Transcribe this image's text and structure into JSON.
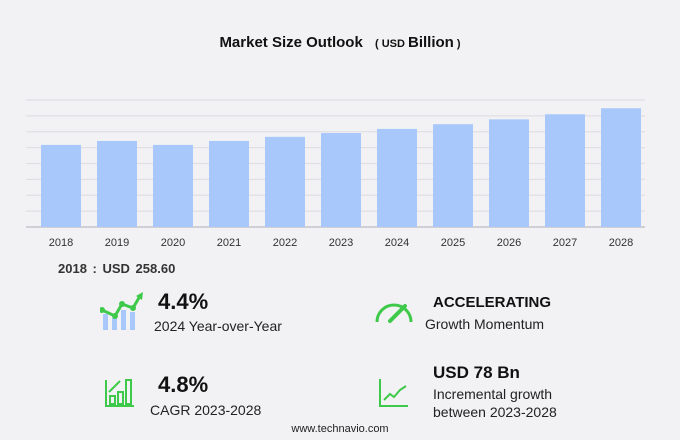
{
  "header": {
    "title": "Market Size Outlook",
    "unit_prefix": "( USD",
    "unit_main": "Billion",
    "unit_suffix": ")"
  },
  "chart_data": {
    "type": "bar",
    "categories": [
      "2018",
      "2019",
      "2020",
      "2021",
      "2022",
      "2023",
      "2024",
      "2025",
      "2026",
      "2027",
      "2028"
    ],
    "values": [
      258.6,
      271,
      258.6,
      271,
      284,
      296,
      309,
      323.8,
      339,
      355,
      374
    ],
    "ylim": [
      0,
      400
    ],
    "grid": true,
    "bar_color": "#a8c8fc",
    "xlabel": "",
    "ylabel": ""
  },
  "base_value": "2018 : USD  258.60",
  "stats": {
    "yoy": {
      "value": "4.4%",
      "label": "2024 Year-over-Year"
    },
    "momentum": {
      "value": "ACCELERATING",
      "label": "Growth Momentum"
    },
    "cagr": {
      "value": "4.8%",
      "label": "CAGR 2023-2028"
    },
    "incremental": {
      "value": "USD 78 Bn",
      "label1": "Incremental growth",
      "label2": "between 2023-2028"
    }
  },
  "colors": {
    "accent_green": "#3ec94a",
    "bar_blue": "#a8c8fc"
  },
  "footer": "www.technavio.com"
}
